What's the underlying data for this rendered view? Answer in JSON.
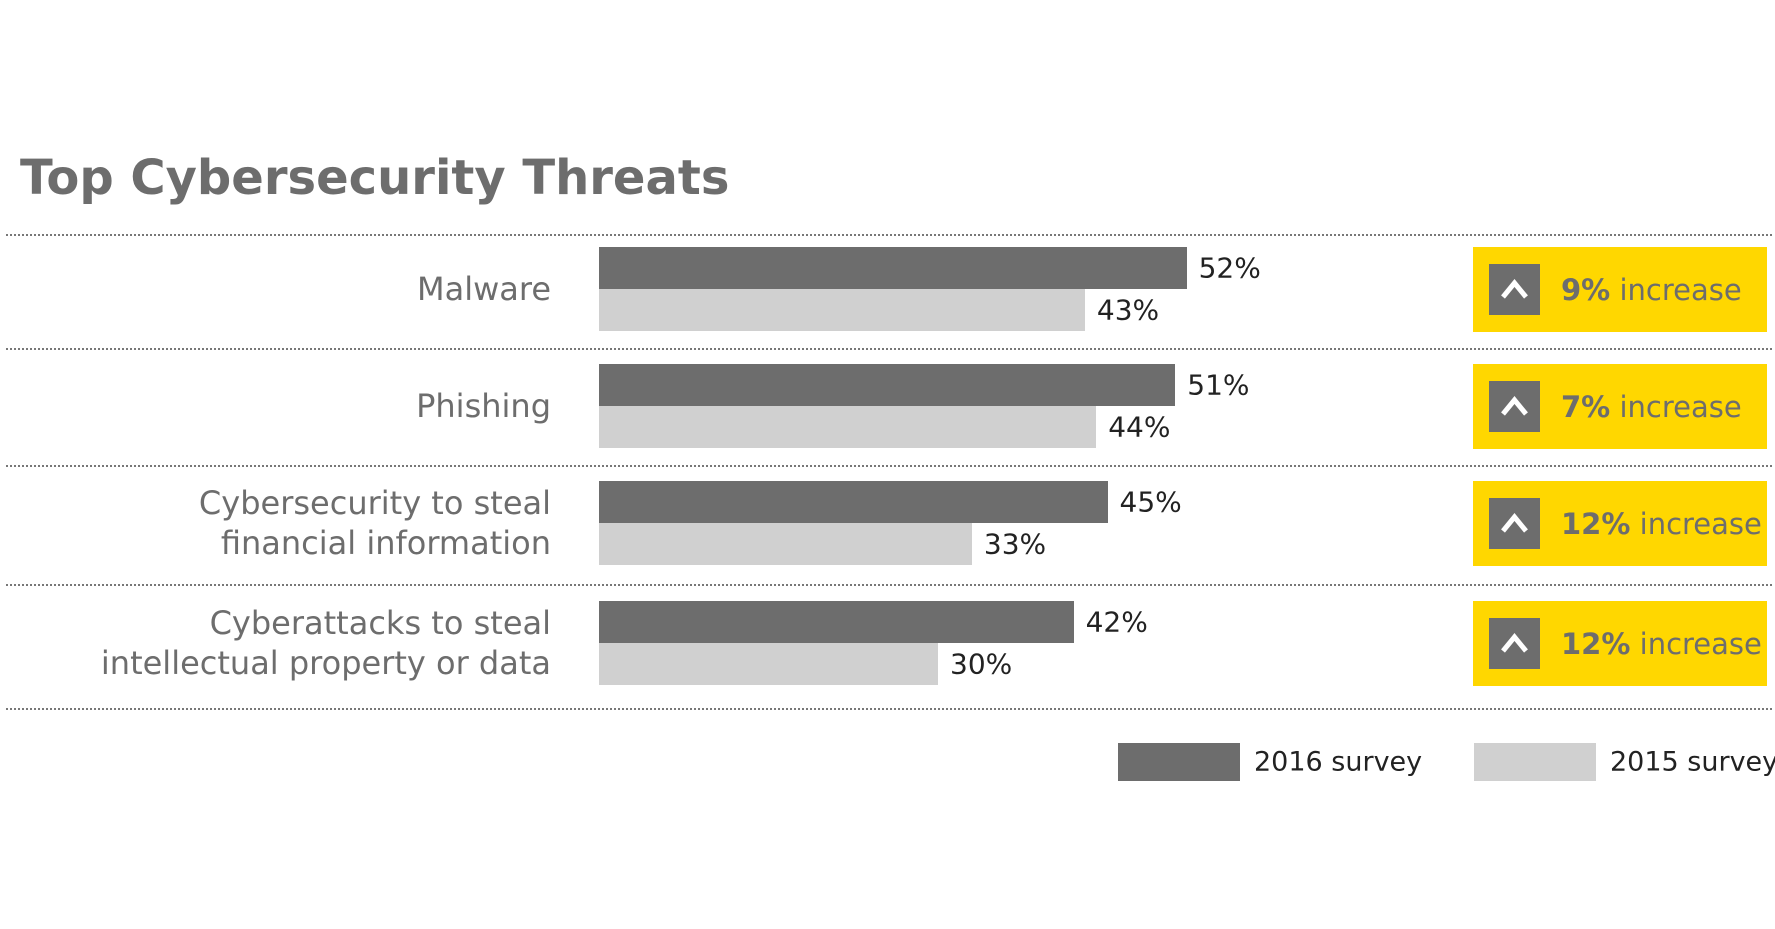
{
  "chart_data": {
    "type": "bar",
    "orientation": "horizontal",
    "title": "Top Cybersecurity Threats",
    "categories": [
      "Malware",
      "Phishing",
      "Cybersecurity to steal\nfinancial information",
      "Cyberattacks to steal\nintellectual property or data"
    ],
    "series": [
      {
        "name": "2016 survey",
        "color": "#6d6d6d",
        "values": [
          52,
          51,
          45,
          42
        ],
        "value_labels": [
          "52%",
          "51%",
          "45%",
          "42%"
        ]
      },
      {
        "name": "2015 survey",
        "color": "#d0d0d0",
        "values": [
          43,
          44,
          33,
          30
        ],
        "value_labels": [
          "43%",
          "44%",
          "33%",
          "30%"
        ]
      }
    ],
    "annotations": [
      {
        "label": "9%",
        "text": "increase"
      },
      {
        "label": "7%",
        "text": "increase"
      },
      {
        "label": "12%",
        "text": "increase"
      },
      {
        "label": "12%",
        "text": "increase"
      }
    ],
    "annotation_color": "#ffd700",
    "legend": "bottom-right"
  }
}
